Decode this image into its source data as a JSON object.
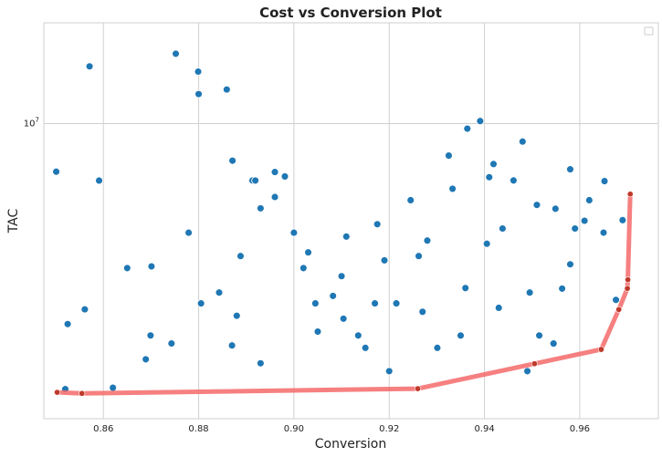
{
  "chart_data": {
    "type": "scatter",
    "title": "Cost vs Conversion Plot",
    "xlabel": "Conversion",
    "ylabel": "TAC",
    "xlim": [
      0.8475,
      0.9765
    ],
    "ylim": [
      0,
      1
    ],
    "y_scale": "log",
    "x_ticks": [
      {
        "value": 0.86,
        "label": "0.86"
      },
      {
        "value": 0.88,
        "label": "0.88"
      },
      {
        "value": 0.9,
        "label": "0.90"
      },
      {
        "value": 0.92,
        "label": "0.92"
      },
      {
        "value": 0.94,
        "label": "0.94"
      },
      {
        "value": 0.96,
        "label": "0.96"
      }
    ],
    "y_ticks": [
      {
        "value": 0.7454,
        "base": "10",
        "exp": "7"
      }
    ],
    "grid": true,
    "legend": "top-right",
    "colors": {
      "points": "#1f77b4",
      "frontier": "#f46a6a",
      "frontier_points": "#c0392b"
    },
    "points": [
      [
        0.8501,
        0.6239
      ],
      [
        0.852,
        0.0747
      ],
      [
        0.8561,
        0.2762
      ],
      [
        0.8591,
        0.6015
      ],
      [
        0.862,
        0.0782
      ],
      [
        0.865,
        0.3804
      ],
      [
        0.8701,
        0.3847
      ],
      [
        0.8752,
        0.9219
      ],
      [
        0.8779,
        0.4698
      ],
      [
        0.8799,
        0.8767
      ],
      [
        0.8843,
        0.3186
      ],
      [
        0.8871,
        0.6517
      ],
      [
        0.8859,
        0.8315
      ],
      [
        0.8913,
        0.6017
      ],
      [
        0.8919,
        0.6016
      ],
      [
        0.893,
        0.5314
      ],
      [
        0.896,
        0.6231
      ],
      [
        0.8981,
        0.6119
      ],
      [
        0.902,
        0.3804
      ],
      [
        0.9045,
        0.2913
      ],
      [
        0.9082,
        0.3101
      ],
      [
        0.9104,
        0.2526
      ],
      [
        0.915,
        0.1789
      ],
      [
        0.917,
        0.2913
      ],
      [
        0.9175,
        0.4913
      ],
      [
        0.9215,
        0.2913
      ],
      [
        0.9262,
        0.4108
      ],
      [
        0.9301,
        0.1789
      ],
      [
        0.9333,
        0.5808
      ],
      [
        0.9364,
        0.7326
      ],
      [
        0.9391,
        0.7518
      ],
      [
        0.9419,
        0.6432
      ],
      [
        0.9438,
        0.4804
      ],
      [
        0.9461,
        0.6017
      ],
      [
        0.9495,
        0.3186
      ],
      [
        0.9515,
        0.2102
      ],
      [
        0.9545,
        0.1899
      ],
      [
        0.9563,
        0.3286
      ],
      [
        0.959,
        0.4804
      ],
      [
        0.962,
        0.5519
      ],
      [
        0.9652,
        0.6001
      ],
      [
        0.969,
        0.5015
      ],
      [
        0.8525,
        0.239
      ],
      [
        0.8571,
        0.89
      ],
      [
        0.8699,
        0.2102
      ],
      [
        0.8805,
        0.2913
      ],
      [
        0.8888,
        0.4108
      ],
      [
        0.9,
        0.4698
      ],
      [
        0.9135,
        0.2102
      ],
      [
        0.9245,
        0.5519
      ],
      [
        0.9325,
        0.6646
      ],
      [
        0.9405,
        0.4419
      ],
      [
        0.948,
        0.7
      ],
      [
        0.9549,
        0.5303
      ],
      [
        0.961,
        0.5
      ],
      [
        0.9676,
        0.3
      ],
      [
        0.8689,
        0.15
      ],
      [
        0.8743,
        0.19
      ],
      [
        0.88,
        0.82
      ],
      [
        0.888,
        0.26
      ],
      [
        0.893,
        0.14
      ],
      [
        0.905,
        0.22
      ],
      [
        0.91,
        0.36
      ],
      [
        0.92,
        0.12
      ],
      [
        0.928,
        0.45
      ],
      [
        0.936,
        0.33
      ],
      [
        0.943,
        0.28
      ],
      [
        0.951,
        0.54
      ],
      [
        0.958,
        0.39
      ],
      [
        0.965,
        0.47
      ],
      [
        0.958,
        0.63
      ],
      [
        0.949,
        0.12
      ],
      [
        0.941,
        0.61
      ],
      [
        0.935,
        0.21
      ],
      [
        0.927,
        0.27
      ],
      [
        0.919,
        0.4
      ],
      [
        0.911,
        0.46
      ],
      [
        0.903,
        0.42
      ],
      [
        0.896,
        0.56
      ],
      [
        0.887,
        0.185
      ]
    ],
    "frontier": [
      [
        0.8503,
        0.0666
      ],
      [
        0.8555,
        0.0639
      ],
      [
        0.926,
        0.0758
      ],
      [
        0.9505,
        0.1389
      ],
      [
        0.9645,
        0.175
      ],
      [
        0.9682,
        0.2757
      ],
      [
        0.97,
        0.329
      ],
      [
        0.9701,
        0.3511
      ],
      [
        0.9706,
        0.5674
      ]
    ]
  }
}
